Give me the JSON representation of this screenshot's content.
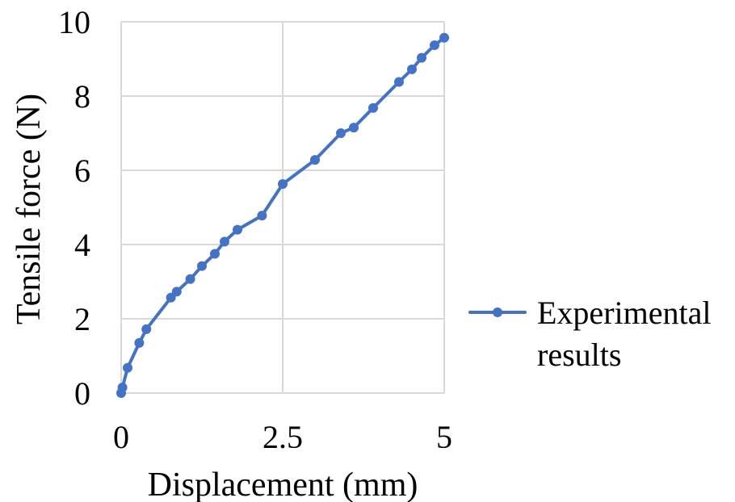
{
  "chart_data": {
    "type": "line",
    "title": "",
    "xlabel": "Displacement (mm)",
    "ylabel": "Tensile force (N)",
    "xlim": [
      0,
      5
    ],
    "ylim": [
      0,
      10
    ],
    "x_ticks": [
      0,
      2.5,
      5
    ],
    "x_tick_labels": [
      "0",
      "2.5",
      "5"
    ],
    "y_ticks": [
      0,
      2,
      4,
      6,
      8,
      10
    ],
    "y_tick_labels": [
      "0",
      "2",
      "4",
      "6",
      "8",
      "10"
    ],
    "grid": true,
    "legend_position": "right",
    "series": [
      {
        "name": "Experimental results",
        "legend_lines": [
          "Experimental",
          "results"
        ],
        "color": "#4472c4",
        "marker": "circle",
        "x": [
          0,
          0.02,
          0.1,
          0.28,
          0.39,
          0.77,
          0.86,
          1.07,
          1.25,
          1.45,
          1.6,
          1.8,
          2.18,
          2.5,
          3.0,
          3.4,
          3.6,
          3.9,
          4.3,
          4.5,
          4.65,
          4.85,
          5.0
        ],
        "y": [
          0,
          0.15,
          0.68,
          1.35,
          1.72,
          2.57,
          2.73,
          3.07,
          3.42,
          3.75,
          4.08,
          4.4,
          4.78,
          5.63,
          6.28,
          7.0,
          7.15,
          7.68,
          8.38,
          8.72,
          9.03,
          9.37,
          9.57
        ]
      }
    ]
  }
}
